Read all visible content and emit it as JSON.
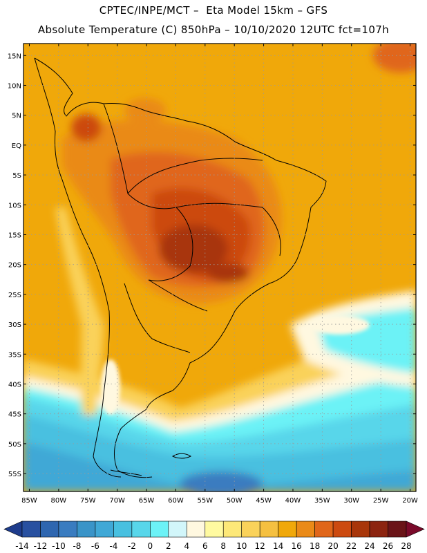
{
  "header": {
    "line1": "CPTEC/INPE/MCT –  Eta Model 15km – GFS",
    "line2": "Absolute Temperature (C) 850hPa – 10/10/2020 12UTC fct=107h"
  },
  "map": {
    "lon_range": [
      -86,
      -19
    ],
    "lat_range": [
      -58,
      17
    ],
    "lon_ticks": [
      {
        "value": -85,
        "label": "85W"
      },
      {
        "value": -80,
        "label": "80W"
      },
      {
        "value": -75,
        "label": "75W"
      },
      {
        "value": -70,
        "label": "70W"
      },
      {
        "value": -65,
        "label": "65W"
      },
      {
        "value": -60,
        "label": "60W"
      },
      {
        "value": -55,
        "label": "55W"
      },
      {
        "value": -50,
        "label": "50W"
      },
      {
        "value": -45,
        "label": "45W"
      },
      {
        "value": -40,
        "label": "40W"
      },
      {
        "value": -35,
        "label": "35W"
      },
      {
        "value": -30,
        "label": "30W"
      },
      {
        "value": -25,
        "label": "25W"
      },
      {
        "value": -20,
        "label": "20W"
      }
    ],
    "lat_ticks": [
      {
        "value": 15,
        "label": "15N"
      },
      {
        "value": 10,
        "label": "10N"
      },
      {
        "value": 5,
        "label": "5N"
      },
      {
        "value": 0,
        "label": "EQ"
      },
      {
        "value": -5,
        "label": "5S"
      },
      {
        "value": -10,
        "label": "10S"
      },
      {
        "value": -15,
        "label": "15S"
      },
      {
        "value": -20,
        "label": "20S"
      },
      {
        "value": -25,
        "label": "25S"
      },
      {
        "value": -30,
        "label": "30S"
      },
      {
        "value": -35,
        "label": "35S"
      },
      {
        "value": -40,
        "label": "40S"
      },
      {
        "value": -45,
        "label": "45S"
      },
      {
        "value": -50,
        "label": "50S"
      },
      {
        "value": -55,
        "label": "55S"
      }
    ],
    "grid": "dotted",
    "coastline_color": "#000000"
  },
  "colorbar": {
    "levels": [
      "-14",
      "-12",
      "-10",
      "-8",
      "-6",
      "-4",
      "-2",
      "0",
      "2",
      "4",
      "6",
      "8",
      "10",
      "12",
      "14",
      "16",
      "18",
      "20",
      "22",
      "24",
      "26",
      "28"
    ],
    "colors": [
      "#1e3c8c",
      "#2850a0",
      "#2e66b0",
      "#3a7cc0",
      "#3a94c8",
      "#40a8d6",
      "#48c0e0",
      "#58d6ea",
      "#6cf2f6",
      "#d2f6fa",
      "#fff8e0",
      "#fffaa0",
      "#fde878",
      "#fad25a",
      "#f5c040",
      "#f0a80a",
      "#ea8a18",
      "#e0661a",
      "#cc4a10",
      "#a8360a",
      "#8c2410",
      "#6a1418",
      "#7a0a2a"
    ],
    "extend": "both"
  }
}
